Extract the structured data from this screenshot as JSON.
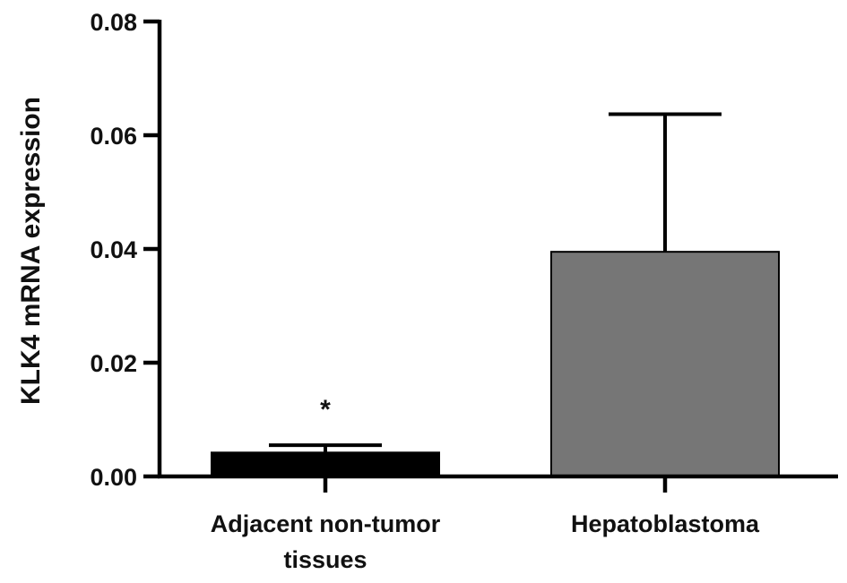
{
  "chart_data": {
    "type": "bar",
    "title": "",
    "xlabel": "",
    "ylabel": "KLK4 mRNA expression",
    "ylim": [
      0,
      0.08
    ],
    "yticks": [
      "0.00",
      "0.02",
      "0.04",
      "0.06",
      "0.08"
    ],
    "grid": false,
    "categories": [
      {
        "lines": [
          "Adjacent non-tumor",
          "tissues"
        ]
      },
      {
        "lines": [
          "Hepatoblastoma"
        ]
      }
    ],
    "values": [
      0.0042,
      0.0395
    ],
    "error_upper": [
      0.0055,
      0.0637
    ],
    "bar_colors": [
      "#000000",
      "#767676"
    ],
    "annotations": [
      {
        "text": "*",
        "category_index": 0
      }
    ]
  }
}
